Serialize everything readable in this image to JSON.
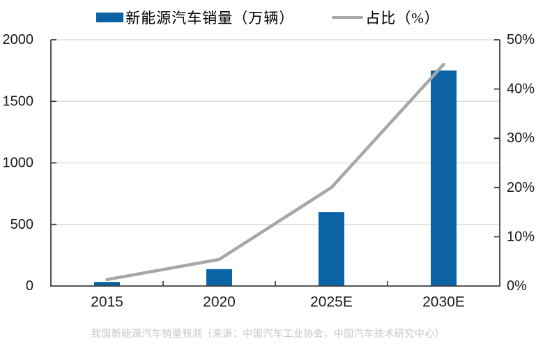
{
  "legend": {
    "sales_label": "新能源汽车销量（万辆）",
    "ratio_label": "占比（%）"
  },
  "caption": "我国新能源汽车销量预测（来源：中国汽车工业协会，中国汽车技术研究中心）",
  "colors": {
    "bar": "#0b63a6",
    "line": "#a7a7a7",
    "grid": "#d8d8d8",
    "axis": "#3f3f3f",
    "tick_label": "#1a1a1a",
    "caption": "#c8c5c5"
  },
  "chart_data": {
    "type": "combo",
    "categories": [
      "2015",
      "2020",
      "2025E",
      "2030E"
    ],
    "series": [
      {
        "name": "新能源汽车销量（万辆）",
        "type": "bar",
        "axis": "left",
        "values": [
          33,
          137,
          600,
          1750
        ]
      },
      {
        "name": "占比（%）",
        "type": "line",
        "axis": "right",
        "values": [
          1.3,
          5.4,
          20,
          45
        ]
      }
    ],
    "left_axis": {
      "min": 0,
      "max": 2000,
      "step": 500,
      "tick_labels": [
        "0",
        "500",
        "1000",
        "1500",
        "2000"
      ]
    },
    "right_axis": {
      "min": 0,
      "max": 50,
      "step": 10,
      "tick_labels": [
        "0%",
        "10%",
        "20%",
        "30%",
        "40%",
        "50%"
      ]
    },
    "grid": true,
    "legend_position": "top",
    "title": "我国新能源汽车销量预测",
    "xlabel": "",
    "ylabel_left": "万辆",
    "ylabel_right": "%"
  }
}
